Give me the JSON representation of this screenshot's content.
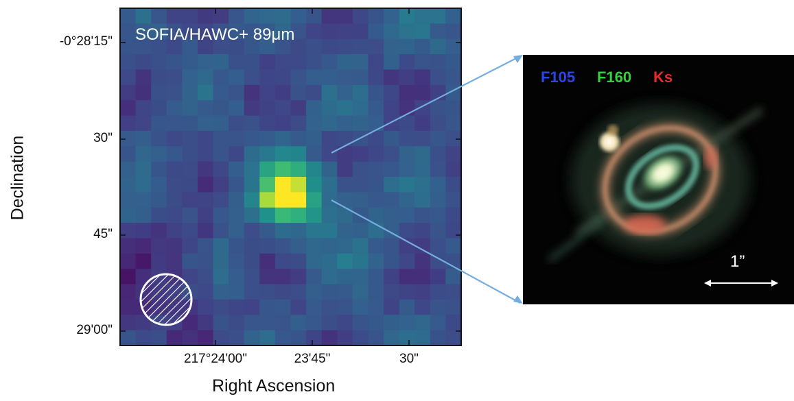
{
  "left_panel": {
    "title": "SOFIA/HAWC+ 89μm",
    "y_axis_title": "Declination",
    "x_axis_title": "Right Ascension",
    "y_ticks": [
      "-0°28'15\"",
      "30\"",
      "45\"",
      "29'00\""
    ],
    "x_ticks": [
      "217°24'00\"",
      "23'45\"",
      "30\""
    ],
    "beam_icon": "hatched-circle-beam"
  },
  "right_panel": {
    "bands": [
      {
        "label": "F105",
        "color": "#2a45e8"
      },
      {
        "label": "F160",
        "color": "#32d23a"
      },
      {
        "label": "Ks",
        "color": "#e82a2a"
      }
    ],
    "scale_bar_label": "1”"
  },
  "colors": {
    "zoom_lines": "#74aee0",
    "colormap_low": "#440154",
    "colormap_mid": "#2a788e",
    "colormap_high": "#fde725"
  }
}
